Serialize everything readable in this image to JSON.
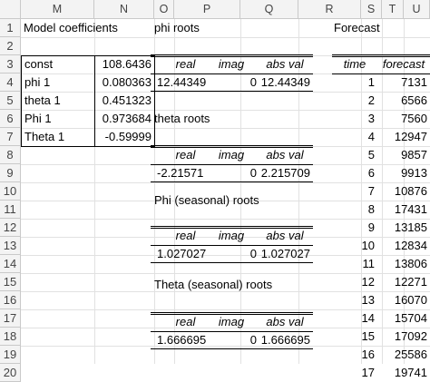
{
  "columns": [
    "M",
    "N",
    "O",
    "P",
    "Q",
    "R",
    "S",
    "T",
    "U"
  ],
  "rows": [
    "1",
    "2",
    "3",
    "4",
    "5",
    "6",
    "7",
    "8",
    "9",
    "10",
    "11",
    "12",
    "13",
    "14",
    "15",
    "16",
    "17",
    "18",
    "19",
    "20"
  ],
  "model": {
    "title": "Model coefficients",
    "items": [
      {
        "label": "const",
        "value": "108.6436"
      },
      {
        "label": "phi 1",
        "value": "0.080363"
      },
      {
        "label": "theta 1",
        "value": "0.451323"
      },
      {
        "label": "Phi 1",
        "value": "0.973684"
      },
      {
        "label": "Theta 1",
        "value": "-0.59999"
      }
    ]
  },
  "roots": {
    "headers": {
      "real": "real",
      "imag": "imag",
      "abs": "abs val"
    },
    "phi": {
      "title": "phi roots",
      "real": "12.44349",
      "imag": "0",
      "abs": "12.44349"
    },
    "theta": {
      "title": "theta roots",
      "real": "-2.21571",
      "imag": "0",
      "abs": "2.215709"
    },
    "Phi": {
      "title": "Phi (seasonal) roots",
      "real": "1.027027",
      "imag": "0",
      "abs": "1.027027"
    },
    "Theta": {
      "title": "Theta (seasonal) roots",
      "real": "1.666695",
      "imag": "0",
      "abs": "1.666695"
    }
  },
  "forecast": {
    "title": "Forecast",
    "col_time": "time",
    "col_forecast": "forecast",
    "rows": [
      {
        "time": "1",
        "value": "7131"
      },
      {
        "time": "2",
        "value": "6566"
      },
      {
        "time": "3",
        "value": "7560"
      },
      {
        "time": "4",
        "value": "12947"
      },
      {
        "time": "5",
        "value": "9857"
      },
      {
        "time": "6",
        "value": "9913"
      },
      {
        "time": "7",
        "value": "10876"
      },
      {
        "time": "8",
        "value": "17431"
      },
      {
        "time": "9",
        "value": "13185"
      },
      {
        "time": "10",
        "value": "12834"
      },
      {
        "time": "11",
        "value": "13806"
      },
      {
        "time": "12",
        "value": "12271"
      },
      {
        "time": "13",
        "value": "16070"
      },
      {
        "time": "14",
        "value": "15704"
      },
      {
        "time": "15",
        "value": "17092"
      },
      {
        "time": "16",
        "value": "25586"
      },
      {
        "time": "17",
        "value": "19741"
      }
    ]
  }
}
